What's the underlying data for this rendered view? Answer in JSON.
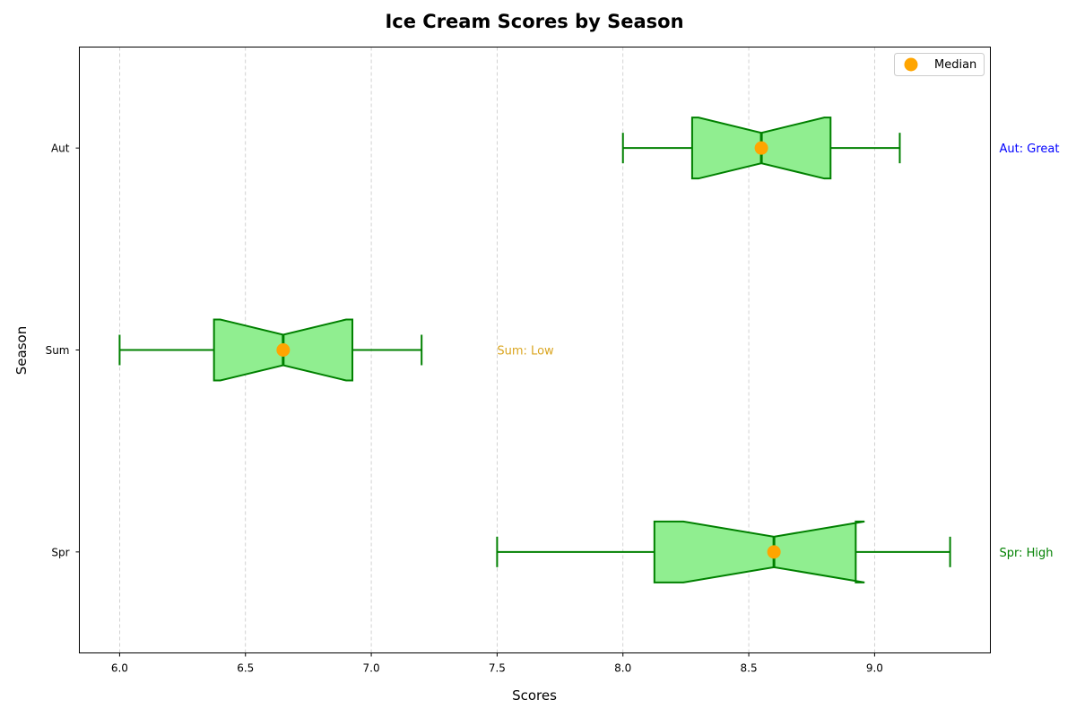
{
  "chart_data": {
    "type": "boxplot",
    "orientation": "horizontal",
    "notched": true,
    "title": "Ice Cream Scores by Season",
    "xlabel": "Scores",
    "ylabel": "Season",
    "xlim": [
      5.84,
      9.46
    ],
    "xticks": [
      "6.0",
      "6.5",
      "7.0",
      "7.5",
      "8.0",
      "8.5",
      "9.0"
    ],
    "grid": "x-dashed",
    "legend": {
      "placement": "top-right",
      "entries": [
        {
          "label": "Median",
          "marker": "circle",
          "color": "#FFA500"
        }
      ]
    },
    "box_fill": "#90EE90",
    "box_edge": "#008000",
    "median_marker_color": "#FFA500",
    "categories": [
      "Spr",
      "Sum",
      "Aut"
    ],
    "boxes": [
      {
        "category": "Spr",
        "whisker_low": 7.5,
        "q1": 8.125,
        "median": 8.6,
        "q3": 8.925,
        "whisker_high": 9.3,
        "notch_low": 8.24,
        "notch_high": 8.96
      },
      {
        "category": "Sum",
        "whisker_low": 6.0,
        "q1": 6.375,
        "median": 6.65,
        "q3": 6.925,
        "whisker_high": 7.2,
        "notch_low": 6.4,
        "notch_high": 6.9
      },
      {
        "category": "Aut",
        "whisker_low": 8.0,
        "q1": 8.275,
        "median": 8.55,
        "q3": 8.825,
        "whisker_high": 9.1,
        "notch_low": 8.3,
        "notch_high": 8.8
      }
    ],
    "annotations": [
      {
        "category": "Aut",
        "text": "Aut: Great",
        "color": "#0000FF",
        "x": 9.5
      },
      {
        "category": "Sum",
        "text": "Sum: Low",
        "color": "#DAA520",
        "x": 7.5
      },
      {
        "category": "Spr",
        "text": "Spr: High",
        "color": "#008000",
        "x": 9.5
      }
    ]
  }
}
